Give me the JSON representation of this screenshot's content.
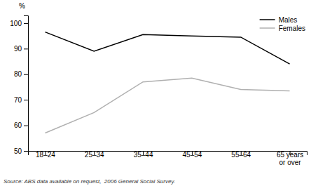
{
  "chart_data": {
    "type": "line",
    "ylabel": "%",
    "source": "Source: ABS data available on request,  2006 General Social Survey.",
    "categories": [
      "18–24",
      "25–34",
      "35–44",
      "45–54",
      "55–64",
      "65 years\nor over"
    ],
    "series": [
      {
        "name": "Males",
        "color": "#000000",
        "values": [
          96.5,
          89.0,
          95.5,
          95.0,
          94.5,
          84.0
        ]
      },
      {
        "name": "Females",
        "color": "#b0b0b0",
        "values": [
          57.0,
          65.0,
          77.0,
          78.5,
          74.0,
          73.5
        ]
      }
    ],
    "ylim": [
      50,
      103
    ],
    "yticks": [
      50,
      60,
      70,
      80,
      90,
      100
    ],
    "legend": "upper right",
    "grid": false
  }
}
